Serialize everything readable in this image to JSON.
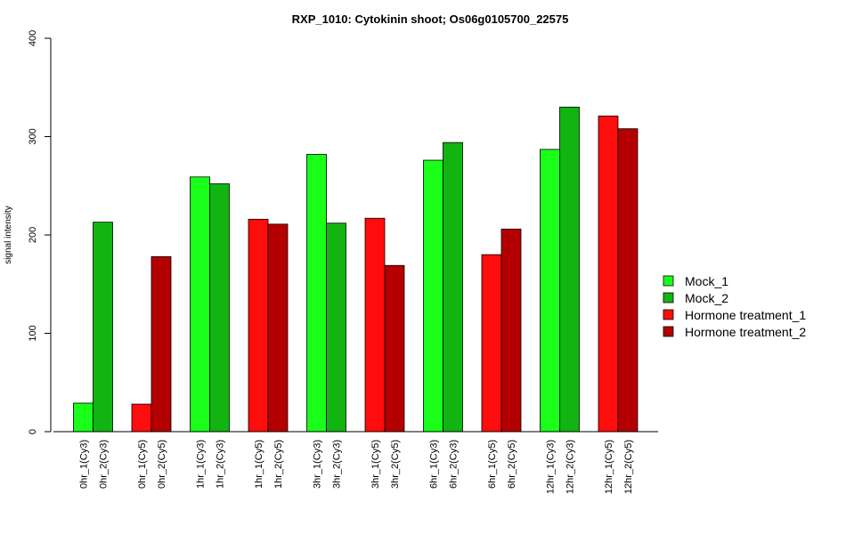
{
  "chart_data": {
    "type": "bar",
    "title": "RXP_1010: Cytokinin shoot; Os06g0105700_22575",
    "xlabel": "",
    "ylabel": "signal intensity",
    "ylim": [
      0,
      400
    ],
    "yticks": [
      "0",
      "100",
      "200",
      "300",
      "400"
    ],
    "grid": false,
    "legend_position": "right",
    "legend": [
      {
        "name": "Mock_1",
        "color": "#1aff1a"
      },
      {
        "name": "Mock_2",
        "color": "#12b412"
      },
      {
        "name": "Hormone treatment_1",
        "color": "#ff0d0d"
      },
      {
        "name": "Hormone treatment_2",
        "color": "#b40000"
      }
    ],
    "bars": [
      {
        "label": "0hr_1(Cy3)",
        "value": 29,
        "color": "#1aff1a"
      },
      {
        "label": "0hr_2(Cy3)",
        "value": 213,
        "color": "#12b412"
      },
      {
        "label": "0hr_1(Cy5)",
        "value": 28,
        "color": "#ff0d0d"
      },
      {
        "label": "0hr_2(Cy5)",
        "value": 178,
        "color": "#b40000"
      },
      {
        "label": "1hr_1(Cy3)",
        "value": 259,
        "color": "#1aff1a"
      },
      {
        "label": "1hr_2(Cy3)",
        "value": 252,
        "color": "#12b412"
      },
      {
        "label": "1hr_1(Cy5)",
        "value": 216,
        "color": "#ff0d0d"
      },
      {
        "label": "1hr_2(Cy5)",
        "value": 211,
        "color": "#b40000"
      },
      {
        "label": "3hr_1(Cy3)",
        "value": 282,
        "color": "#1aff1a"
      },
      {
        "label": "3hr_2(Cy3)",
        "value": 212,
        "color": "#12b412"
      },
      {
        "label": "3hr_1(Cy5)",
        "value": 217,
        "color": "#ff0d0d"
      },
      {
        "label": "3hr_2(Cy5)",
        "value": 169,
        "color": "#b40000"
      },
      {
        "label": "6hr_1(Cy3)",
        "value": 276,
        "color": "#1aff1a"
      },
      {
        "label": "6hr_2(Cy3)",
        "value": 294,
        "color": "#12b412"
      },
      {
        "label": "6hr_1(Cy5)",
        "value": 180,
        "color": "#ff0d0d"
      },
      {
        "label": "6hr_2(Cy5)",
        "value": 206,
        "color": "#b40000"
      },
      {
        "label": "12hr_1(Cy3)",
        "value": 287,
        "color": "#1aff1a"
      },
      {
        "label": "12hr_2(Cy3)",
        "value": 330,
        "color": "#12b412"
      },
      {
        "label": "12hr_1(Cy5)",
        "value": 321,
        "color": "#ff0d0d"
      },
      {
        "label": "12hr_2(Cy5)",
        "value": 308,
        "color": "#b40000"
      }
    ]
  }
}
